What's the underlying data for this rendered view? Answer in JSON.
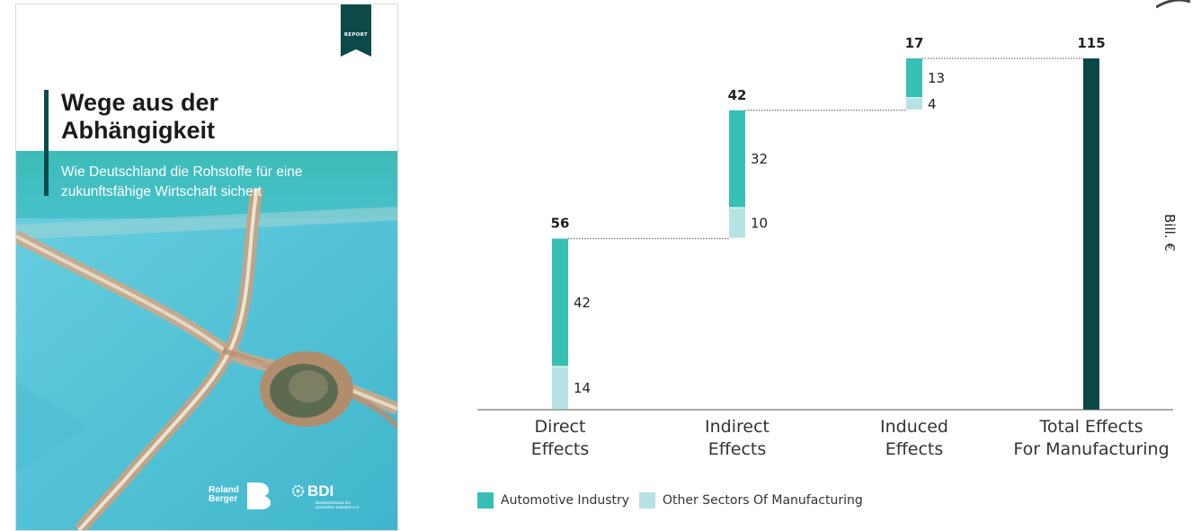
{
  "cover": {
    "tag": "REPORT",
    "title_line1": "Wege aus der",
    "title_line2": "Abhängigkeit",
    "subtitle_line1": "Wie Deutschland die Rohstoffe für eine",
    "subtitle_line2": "zukunftsfähige Wirtschaft sichert",
    "logo_rb_line1": "Roland",
    "logo_rb_line2": "Berger",
    "logo_bdi": "BDI",
    "logo_bdi_sub": "Bundesverband der Deutschen Industrie e.V.",
    "colors": {
      "dark": "#0c4a4a",
      "turquoise": "#3cbcb8",
      "water": "#55c3d6"
    }
  },
  "chart_data": {
    "type": "bar",
    "subtype": "stacked-waterfall",
    "categories": [
      "Direct\nEffects",
      "Indirect\nEffects",
      "Induced\nEffects",
      "Total Effects\nFor Manufacturing"
    ],
    "series": [
      {
        "name": "Automotive Industry",
        "color": "#38bfb3",
        "values": [
          42,
          32,
          13,
          null
        ]
      },
      {
        "name": "Other Sectors Of Manufacturing",
        "color": "#b6e2e3",
        "values": [
          14,
          10,
          4,
          null
        ]
      }
    ],
    "totals": [
      56,
      42,
      17,
      115
    ],
    "total_color": "#0a4747",
    "ylabel": "Bill. €",
    "ylim": [
      0,
      115
    ],
    "legend_position": "bottom-left"
  }
}
